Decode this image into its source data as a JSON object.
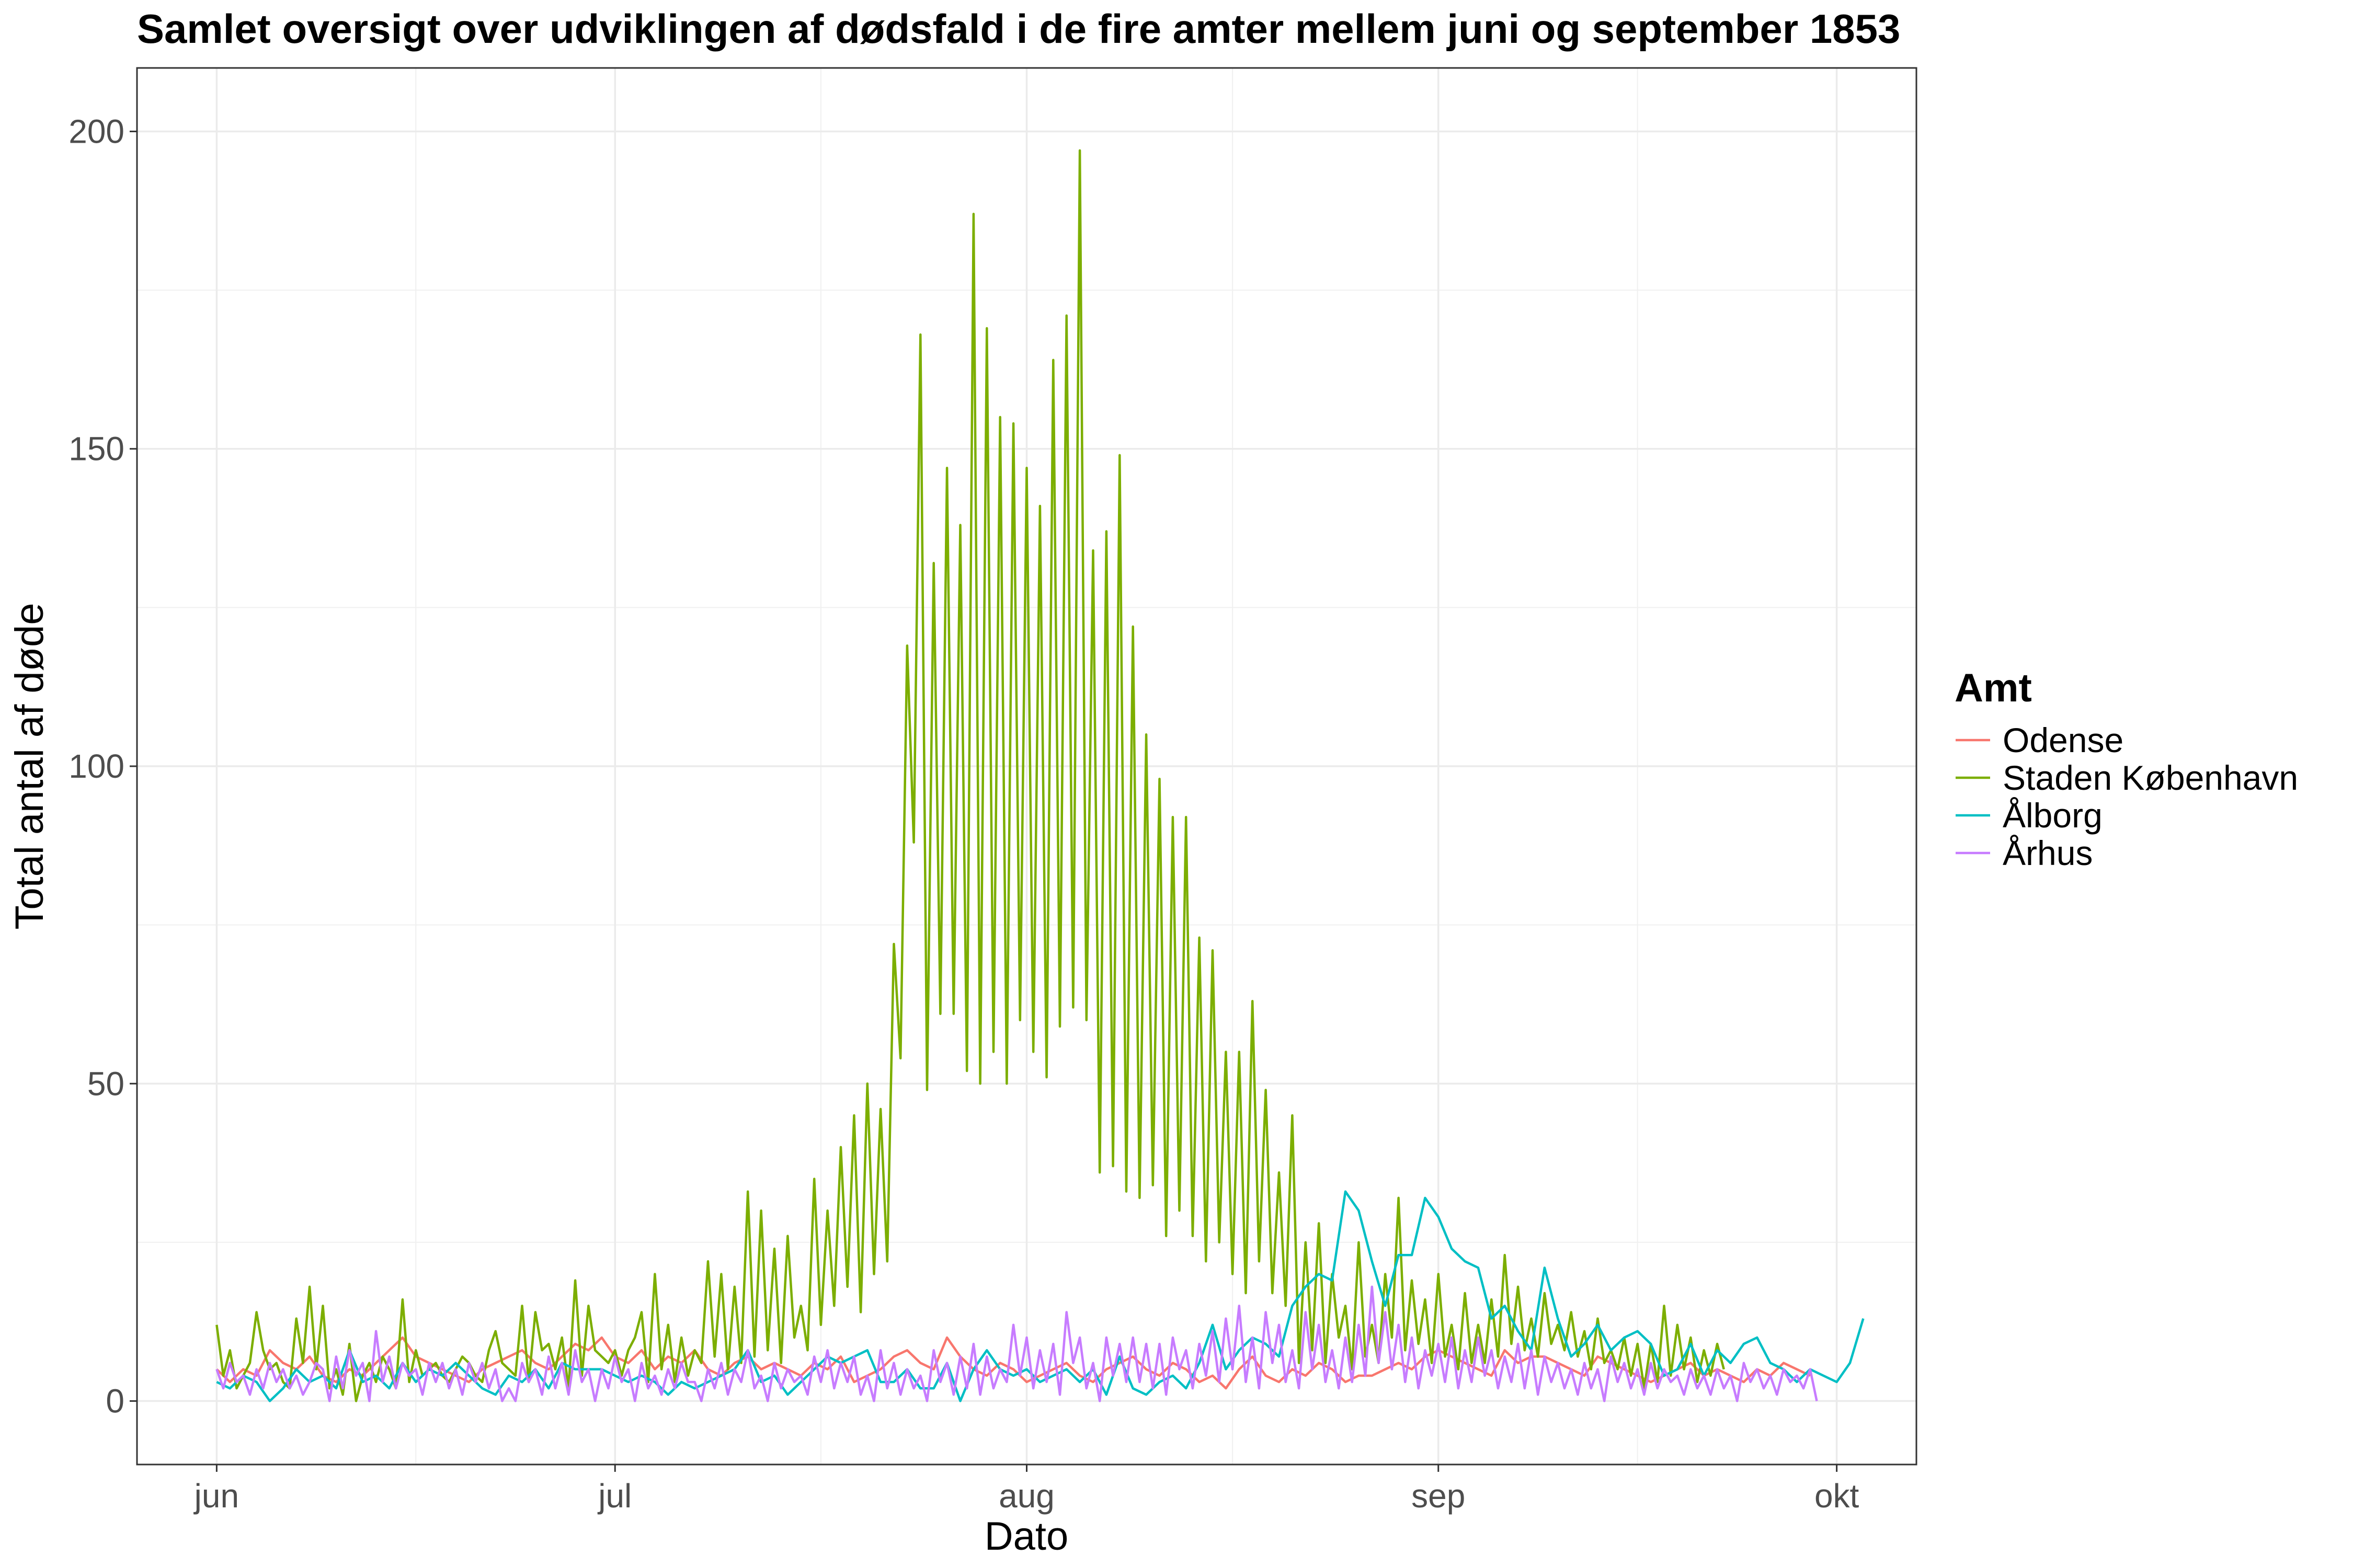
{
  "chart_data": {
    "type": "line",
    "title": "Samlet oversigt over udviklingen af dødsfald i de fire amter mellem juni og september 1853",
    "xlabel": "Dato",
    "ylabel": "Total antal af døde",
    "x_start": "1853-06-01",
    "x_end": "1853-09-30",
    "x_ticks": [
      {
        "label": "jun",
        "day": 0
      },
      {
        "label": "jul",
        "day": 30
      },
      {
        "label": "aug",
        "day": 61
      },
      {
        "label": "sep",
        "day": 92
      },
      {
        "label": "okt",
        "day": 122
      }
    ],
    "xlim_days": [
      -6,
      128
    ],
    "ylim": [
      -10,
      210
    ],
    "y_ticks": [
      0,
      50,
      100,
      150,
      200
    ],
    "grid": true,
    "legend": {
      "title": "Amt",
      "position": "right"
    },
    "series": [
      {
        "name": "Odense",
        "color": "#F8766D",
        "start_day": 0,
        "step_days": 1,
        "values": [
          5,
          3,
          5,
          4,
          8,
          6,
          5,
          7,
          4,
          3,
          5,
          4,
          6,
          8,
          10,
          7,
          6,
          5,
          4,
          3,
          5,
          6,
          7,
          8,
          6,
          5,
          7,
          9,
          8,
          10,
          7,
          6,
          8,
          5,
          7,
          6,
          8,
          5,
          4,
          6,
          7,
          5,
          6,
          5,
          4,
          6,
          5,
          7,
          3,
          4,
          5,
          7,
          8,
          6,
          5,
          10,
          7,
          5,
          4,
          6,
          5,
          3,
          4,
          5,
          6,
          4,
          3,
          5,
          6,
          7,
          5,
          4,
          6,
          5,
          3,
          4,
          2,
          5,
          7,
          4,
          3,
          5,
          4,
          6,
          5,
          3,
          4,
          4,
          5,
          6,
          5,
          7,
          8,
          7,
          6,
          5,
          4,
          8,
          6,
          7,
          7,
          6,
          5,
          4,
          7,
          6,
          5,
          4,
          3,
          4,
          5,
          6,
          4,
          5,
          4,
          3,
          5,
          4,
          6,
          5,
          4
        ]
      },
      {
        "name": "Staden København",
        "color": "#7CAE00",
        "start_day": 0,
        "step_days": 0.5,
        "values": [
          12,
          4,
          8,
          2,
          4,
          6,
          14,
          8,
          5,
          6,
          3,
          2,
          13,
          6,
          18,
          5,
          15,
          2,
          5,
          1,
          9,
          0,
          4,
          6,
          3,
          7,
          5,
          2,
          16,
          3,
          8,
          4,
          5,
          6,
          4,
          3,
          5,
          7,
          6,
          4,
          3,
          8,
          11,
          6,
          5,
          4,
          15,
          3,
          14,
          8,
          9,
          5,
          10,
          2,
          19,
          4,
          15,
          8,
          7,
          6,
          8,
          4,
          8,
          10,
          14,
          3,
          20,
          5,
          12,
          3,
          10,
          4,
          8,
          6,
          22,
          7,
          20,
          5,
          18,
          6,
          33,
          7,
          30,
          8,
          24,
          6,
          26,
          10,
          15,
          8,
          35,
          12,
          30,
          15,
          40,
          18,
          45,
          14,
          50,
          20,
          46,
          22,
          72,
          54,
          119,
          88,
          168,
          49,
          132,
          61,
          147,
          61,
          138,
          52,
          187,
          50,
          169,
          55,
          155,
          50,
          154,
          60,
          147,
          55,
          141,
          51,
          164,
          59,
          171,
          62,
          197,
          60,
          134,
          36,
          137,
          37,
          149,
          33,
          122,
          32,
          105,
          34,
          98,
          26,
          92,
          30,
          92,
          26,
          73,
          22,
          71,
          25,
          55,
          20,
          55,
          17,
          63,
          22,
          49,
          17,
          36,
          15,
          45,
          6,
          25,
          8,
          28,
          6,
          20,
          10,
          15,
          5,
          25,
          7,
          12,
          6,
          20,
          10,
          32,
          8,
          19,
          9,
          16,
          6,
          20,
          7,
          12,
          5,
          17,
          6,
          12,
          6,
          16,
          7,
          23,
          9,
          18,
          8,
          13,
          7,
          17,
          9,
          12,
          8,
          14,
          7,
          11,
          5,
          13,
          6,
          8,
          5,
          10,
          4,
          9,
          2,
          9,
          3,
          15,
          4,
          12,
          5,
          10,
          3,
          8,
          4,
          9,
          5
        ]
      },
      {
        "name": "Ålborg",
        "color": "#00BFC4",
        "start_day": 0,
        "step_days": 1,
        "values": [
          3,
          2,
          4,
          3,
          0,
          2,
          5,
          3,
          4,
          2,
          8,
          3,
          4,
          2,
          6,
          3,
          5,
          4,
          6,
          4,
          2,
          1,
          4,
          3,
          5,
          2,
          6,
          5,
          5,
          5,
          4,
          3,
          4,
          3,
          1,
          3,
          2,
          3,
          4,
          5,
          8,
          3,
          4,
          1,
          3,
          5,
          7,
          6,
          7,
          8,
          3,
          3,
          5,
          2,
          2,
          6,
          0,
          5,
          8,
          5,
          4,
          5,
          3,
          4,
          5,
          3,
          5,
          1,
          7,
          2,
          1,
          3,
          4,
          2,
          6,
          12,
          5,
          8,
          10,
          9,
          7,
          15,
          18,
          20,
          19,
          33,
          30,
          22,
          15,
          23,
          23,
          32,
          29,
          24,
          22,
          21,
          13,
          15,
          11,
          8,
          21,
          13,
          7,
          9,
          12,
          8,
          10,
          11,
          9,
          4,
          5,
          9,
          4,
          8,
          6,
          9,
          10,
          6,
          5,
          3,
          5,
          4,
          3,
          6,
          13
        ]
      },
      {
        "name": "Århus",
        "color": "#C77CFF",
        "start_day": 0,
        "step_days": 0.5,
        "values": [
          5,
          2,
          6,
          3,
          4,
          1,
          5,
          2,
          6,
          3,
          5,
          2,
          4,
          1,
          3,
          6,
          5,
          0,
          7,
          2,
          8,
          4,
          6,
          0,
          11,
          3,
          7,
          2,
          6,
          4,
          5,
          1,
          6,
          3,
          6,
          2,
          5,
          1,
          6,
          3,
          6,
          2,
          5,
          0,
          2,
          0,
          6,
          3,
          5,
          1,
          7,
          2,
          6,
          1,
          8,
          3,
          5,
          0,
          5,
          2,
          7,
          3,
          5,
          0,
          6,
          2,
          4,
          1,
          5,
          2,
          6,
          3,
          3,
          0,
          5,
          2,
          6,
          1,
          5,
          3,
          8,
          2,
          4,
          0,
          6,
          2,
          5,
          3,
          4,
          1,
          7,
          3,
          8,
          2,
          6,
          3,
          7,
          1,
          4,
          0,
          8,
          2,
          6,
          1,
          5,
          2,
          4,
          0,
          8,
          3,
          6,
          1,
          7,
          2,
          9,
          1,
          7,
          2,
          5,
          3,
          12,
          4,
          10,
          2,
          8,
          3,
          9,
          1,
          14,
          6,
          10,
          2,
          6,
          0,
          10,
          4,
          9,
          3,
          10,
          3,
          9,
          2,
          9,
          1,
          10,
          5,
          8,
          2,
          9,
          4,
          11,
          3,
          13,
          5,
          15,
          3,
          10,
          2,
          14,
          6,
          12,
          3,
          8,
          2,
          14,
          5,
          12,
          3,
          8,
          2,
          10,
          3,
          12,
          4,
          18,
          6,
          14,
          5,
          12,
          3,
          10,
          2,
          8,
          4,
          9,
          3,
          10,
          2,
          8,
          3,
          10,
          4,
          8,
          2,
          7,
          3,
          9,
          2,
          8,
          1,
          7,
          3,
          6,
          2,
          5,
          1,
          6,
          2,
          5,
          0,
          7,
          3,
          6,
          2,
          5,
          1,
          6,
          2,
          5,
          3,
          4,
          1,
          5,
          2,
          4,
          1,
          5,
          2,
          4,
          0,
          6,
          3,
          5,
          2,
          4,
          1,
          5,
          3,
          4,
          2,
          5,
          0
        ]
      }
    ]
  }
}
